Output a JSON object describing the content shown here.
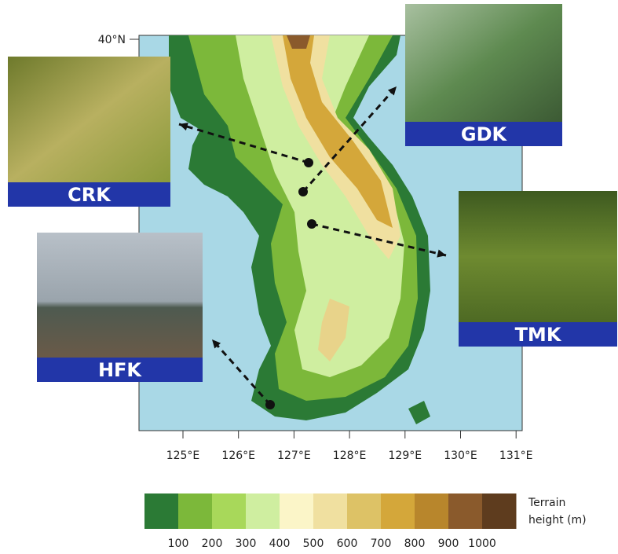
{
  "latitude_label": "40°N",
  "longitude_labels": [
    "125°E",
    "126°E",
    "127°E",
    "128°E",
    "129°E",
    "130°E",
    "131°E"
  ],
  "sites": [
    {
      "label": "CRK"
    },
    {
      "label": "GDK"
    },
    {
      "label": "TMK"
    },
    {
      "label": "HFK"
    }
  ],
  "colorbar": {
    "labels": [
      100,
      200,
      300,
      400,
      500,
      600,
      700,
      800,
      900,
      1000
    ],
    "colors": [
      "#2b7a35",
      "#7cb83a",
      "#a8d85a",
      "#cfeea0",
      "#fbf5c8",
      "#f0e0a0",
      "#ddc266",
      "#d4a73a",
      "#b8862c",
      "#8a5a2c",
      "#5e3c1e"
    ],
    "title_lines": [
      "Terrain",
      "height (m)"
    ]
  }
}
